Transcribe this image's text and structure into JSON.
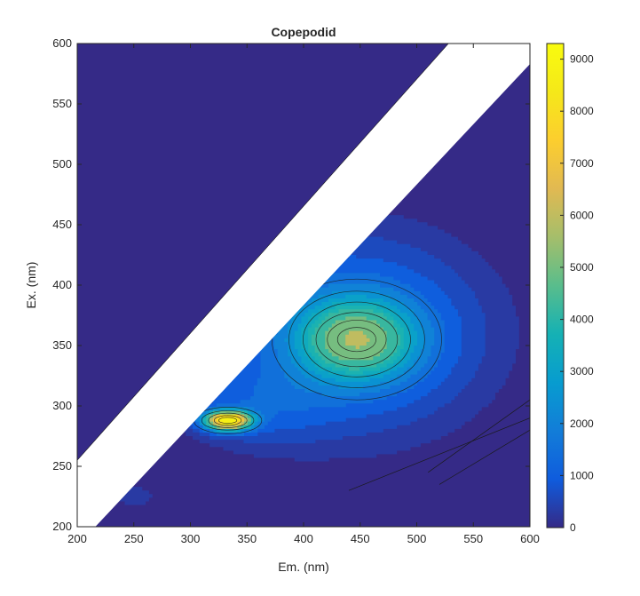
{
  "chart_data": {
    "type": "heatmap",
    "subtype": "filled-contour",
    "title": "Copepodid",
    "xlabel": "Em. (nm)",
    "ylabel": "Ex. (nm)",
    "xlim": [
      200,
      600
    ],
    "ylim": [
      200,
      600
    ],
    "x_ticks": [
      200,
      250,
      300,
      350,
      400,
      450,
      500,
      550,
      600
    ],
    "y_ticks": [
      200,
      250,
      300,
      350,
      400,
      450,
      500,
      550,
      600
    ],
    "colormap": "parula",
    "colorbar": {
      "min": 0,
      "max": 9300,
      "ticks": [
        0,
        1000,
        2000,
        3000,
        4000,
        5000,
        6000,
        7000,
        8000,
        9000
      ]
    },
    "masked_band": {
      "description": "white diagonal band (no data) between the two scatter lines",
      "upper_edge": [
        [
          200,
          255
        ],
        [
          528,
          600
        ]
      ],
      "lower_edge": [
        [
          216,
          200
        ],
        [
          600,
          583
        ]
      ]
    },
    "peaks": [
      {
        "em": 333,
        "ex": 288,
        "intensity": 9300
      },
      {
        "em": 447,
        "ex": 355,
        "intensity": 4300
      }
    ],
    "grid": false
  }
}
